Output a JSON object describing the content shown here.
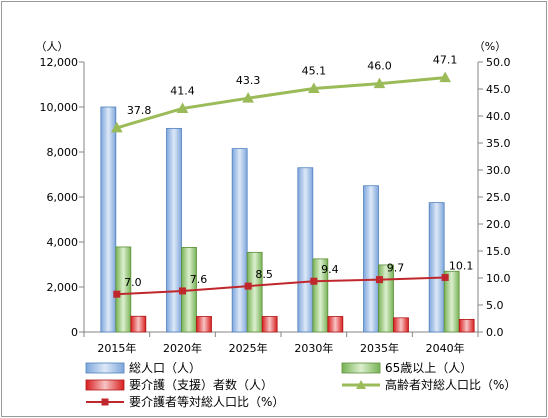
{
  "chart_data": {
    "type": "bar",
    "categories": [
      "2015年",
      "2020年",
      "2025年",
      "2030年",
      "2035年",
      "2040年"
    ],
    "y_left": {
      "unit_label": "（人）",
      "min": 0,
      "max": 12000,
      "step": 2000,
      "ticks": [
        "0",
        "2,000",
        "4,000",
        "6,000",
        "8,000",
        "10,000",
        "12,000"
      ]
    },
    "y_right": {
      "unit_label": "（%）",
      "min": 0,
      "max": 50,
      "step": 5,
      "ticks": [
        "0.0",
        "5.0",
        "10.0",
        "15.0",
        "20.0",
        "25.0",
        "30.0",
        "35.0",
        "40.0",
        "45.0",
        "50.0"
      ]
    },
    "series": [
      {
        "name": "総人口（人）",
        "kind": "bar",
        "axis": "left",
        "color": "#8fb4e3",
        "values": [
          10000,
          9050,
          8150,
          7300,
          6500,
          5750
        ]
      },
      {
        "name": "65歳以上（人）",
        "kind": "bar",
        "axis": "left",
        "color": "#8dc26b",
        "values": [
          3780,
          3760,
          3540,
          3250,
          2980,
          2700
        ]
      },
      {
        "name": "要介護（支援）者数（人）",
        "kind": "bar",
        "axis": "left",
        "color": "#e23b3b",
        "values": [
          700,
          690,
          690,
          690,
          630,
          560
        ]
      },
      {
        "name": "高齢者対総人口比（%）",
        "kind": "line",
        "axis": "right",
        "color": "#9bbb59",
        "values": [
          37.8,
          41.4,
          43.3,
          45.1,
          46.0,
          47.1
        ],
        "labels": [
          "37.8",
          "41.4",
          "43.3",
          "45.1",
          "46.0",
          "47.1"
        ]
      },
      {
        "name": "要介護者等対総人口比（%）",
        "kind": "line",
        "axis": "right",
        "color": "#c0272d",
        "values": [
          7.0,
          7.6,
          8.5,
          9.4,
          9.7,
          10.1
        ],
        "labels": [
          "7.0",
          "7.6",
          "8.5",
          "9.4",
          "9.7",
          "10.1"
        ]
      }
    ],
    "legend": {
      "position": "bottom",
      "items": [
        "総人口（人）",
        "65歳以上（人）",
        "要介護（支援）者数（人）",
        "高齢者対総人口比（%）",
        "要介護者等対総人口比（%）"
      ]
    },
    "grid": false
  }
}
